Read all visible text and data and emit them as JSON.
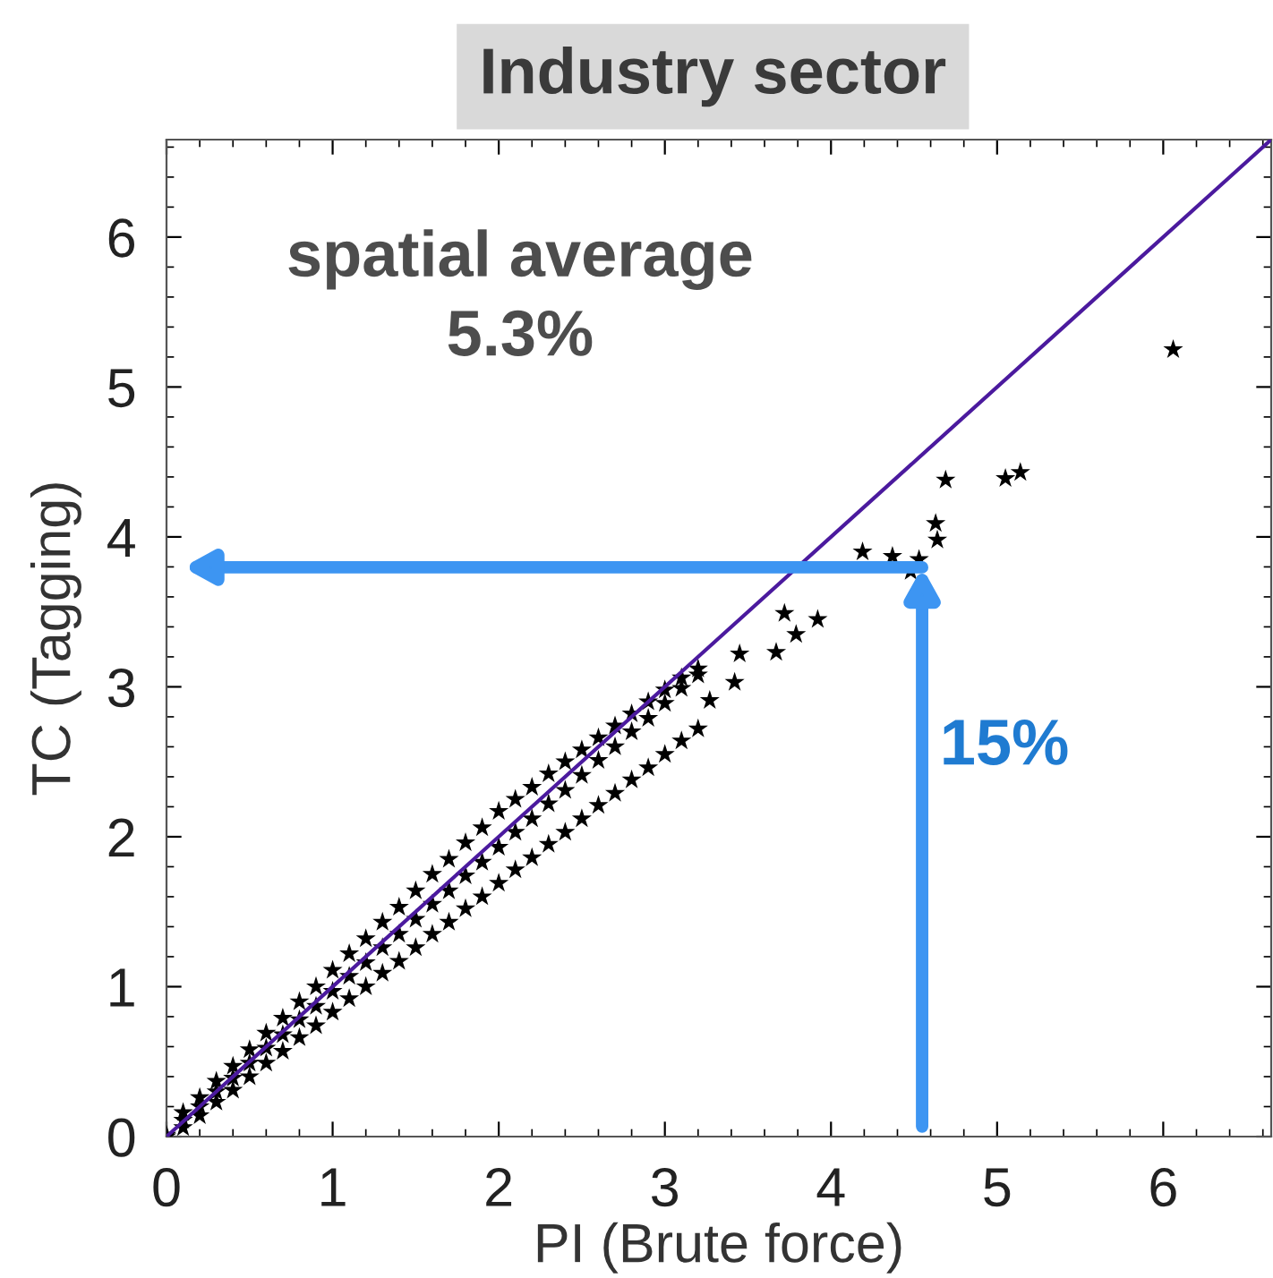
{
  "chart_data": {
    "type": "scatter",
    "title": "Industry sector",
    "xlabel": "PI (Brute force)",
    "ylabel": "TC (Tagging)",
    "xlim": [
      0,
      6.65
    ],
    "ylim": [
      0,
      6.65
    ],
    "xticks": [
      0,
      1,
      2,
      3,
      4,
      5,
      6
    ],
    "yticks": [
      0,
      1,
      2,
      3,
      4,
      5,
      6
    ],
    "grid": false,
    "annotations": [
      "spatial average\n5.3%",
      "15%"
    ],
    "series": [
      {
        "marker": "star",
        "color": "#000000",
        "x": [
          0.1,
          0.2,
          0.3,
          0.4,
          0.5,
          0.6,
          0.7,
          0.8,
          0.9,
          1.0,
          1.1,
          1.2,
          1.3,
          1.4,
          1.5,
          1.6,
          1.7,
          1.8,
          1.9,
          2.0,
          2.1,
          2.2,
          2.3,
          2.4,
          2.5,
          2.6,
          2.7,
          2.8,
          2.9,
          3.0,
          3.1,
          3.2,
          0,
          0.1,
          0.2,
          0.3,
          0.4,
          0.5,
          0.6,
          0.7,
          0.8,
          0.9,
          1.0,
          1.1,
          1.2,
          1.3,
          1.4,
          1.5,
          1.6,
          1.7,
          1.8,
          1.9,
          2.0,
          2.1,
          2.2,
          2.3,
          2.4,
          2.5,
          2.6,
          2.7,
          2.8,
          2.9,
          3.0,
          3.1,
          3.2,
          0,
          0.1,
          0.2,
          0.3,
          0.4,
          0.5,
          0.6,
          0.7,
          0.8,
          0.9,
          1.0,
          1.1,
          1.2,
          1.3,
          1.4,
          1.5,
          1.6,
          1.7,
          1.8,
          1.9,
          2.0,
          2.1,
          2.2,
          2.3,
          2.4,
          2.5,
          2.6,
          2.7,
          2.8,
          2.9,
          3.0,
          3.1,
          3.2,
          6.06,
          4.69,
          5.05,
          5.14,
          4.63,
          4.64,
          4.19,
          4.37,
          4.53,
          4.48,
          3.72,
          3.92,
          3.79,
          3.67,
          3.45,
          3.42,
          3.27
        ],
        "values": [
          0.16,
          0.26,
          0.37,
          0.47,
          0.58,
          0.69,
          0.79,
          0.9,
          1.0,
          1.11,
          1.22,
          1.32,
          1.43,
          1.53,
          1.64,
          1.75,
          1.85,
          1.96,
          2.06,
          2.17,
          2.25,
          2.33,
          2.42,
          2.5,
          2.58,
          2.66,
          2.74,
          2.82,
          2.9,
          2.98,
          3.06,
          3.12,
          0.01,
          0.11,
          0.2,
          0.3,
          0.39,
          0.49,
          0.59,
          0.68,
          0.78,
          0.87,
          0.97,
          1.07,
          1.16,
          1.26,
          1.35,
          1.45,
          1.55,
          1.64,
          1.74,
          1.83,
          1.93,
          2.03,
          2.12,
          2.22,
          2.31,
          2.41,
          2.51,
          2.6,
          2.7,
          2.79,
          2.89,
          2.99,
          3.08,
          0,
          0.06,
          0.14,
          0.23,
          0.31,
          0.4,
          0.49,
          0.57,
          0.66,
          0.74,
          0.83,
          0.92,
          1.0,
          1.09,
          1.17,
          1.26,
          1.35,
          1.43,
          1.52,
          1.6,
          1.69,
          1.78,
          1.86,
          1.95,
          2.03,
          2.12,
          2.21,
          2.29,
          2.38,
          2.46,
          2.55,
          2.64,
          2.72,
          5.25,
          4.38,
          4.39,
          4.43,
          4.09,
          3.98,
          3.9,
          3.87,
          3.85,
          3.77,
          3.49,
          3.45,
          3.35,
          3.23,
          3.22,
          3.03,
          2.91
        ]
      },
      {
        "type": "line",
        "color": "#4b1a9e",
        "x": [
          0,
          6.65
        ],
        "values": [
          0,
          6.65
        ]
      }
    ]
  }
}
